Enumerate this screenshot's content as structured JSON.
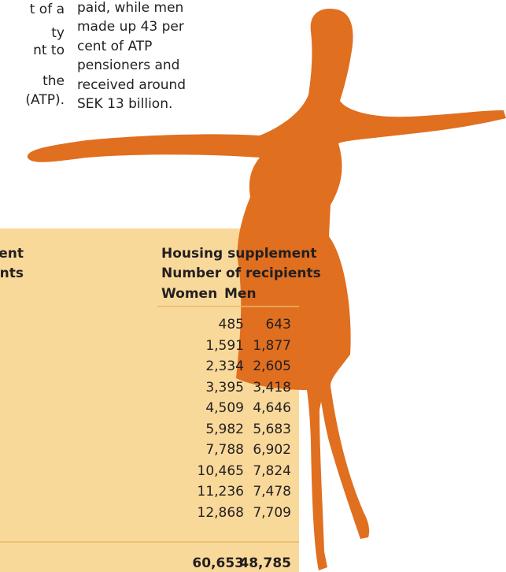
{
  "left_column": [
    "t of a",
    "ty",
    "nt to",
    "the",
    "(ATP)."
  ],
  "right_column": [
    "paid, while men",
    "made up 43 per",
    "cent of ATP",
    "pensioners and",
    "received around",
    "SEK 13 billion."
  ],
  "table": {
    "left_header": [
      "ent",
      "nts"
    ],
    "header": {
      "title": "Housing supplement",
      "subtitle": "Number of recipients",
      "columns": [
        "Women",
        "Men"
      ]
    },
    "rows": [
      [
        "485",
        "643"
      ],
      [
        "1,591",
        "1,877"
      ],
      [
        "2,334",
        "2,605"
      ],
      [
        "3,395",
        "3,418"
      ],
      [
        "4,509",
        "4,646"
      ],
      [
        "5,982",
        "5,683"
      ],
      [
        "7,788",
        "6,902"
      ],
      [
        "10,465",
        "7,824"
      ],
      [
        "11,236",
        "7,478"
      ],
      [
        "12,868",
        "7,709"
      ]
    ],
    "total": [
      "60,653",
      "48,785"
    ]
  }
}
